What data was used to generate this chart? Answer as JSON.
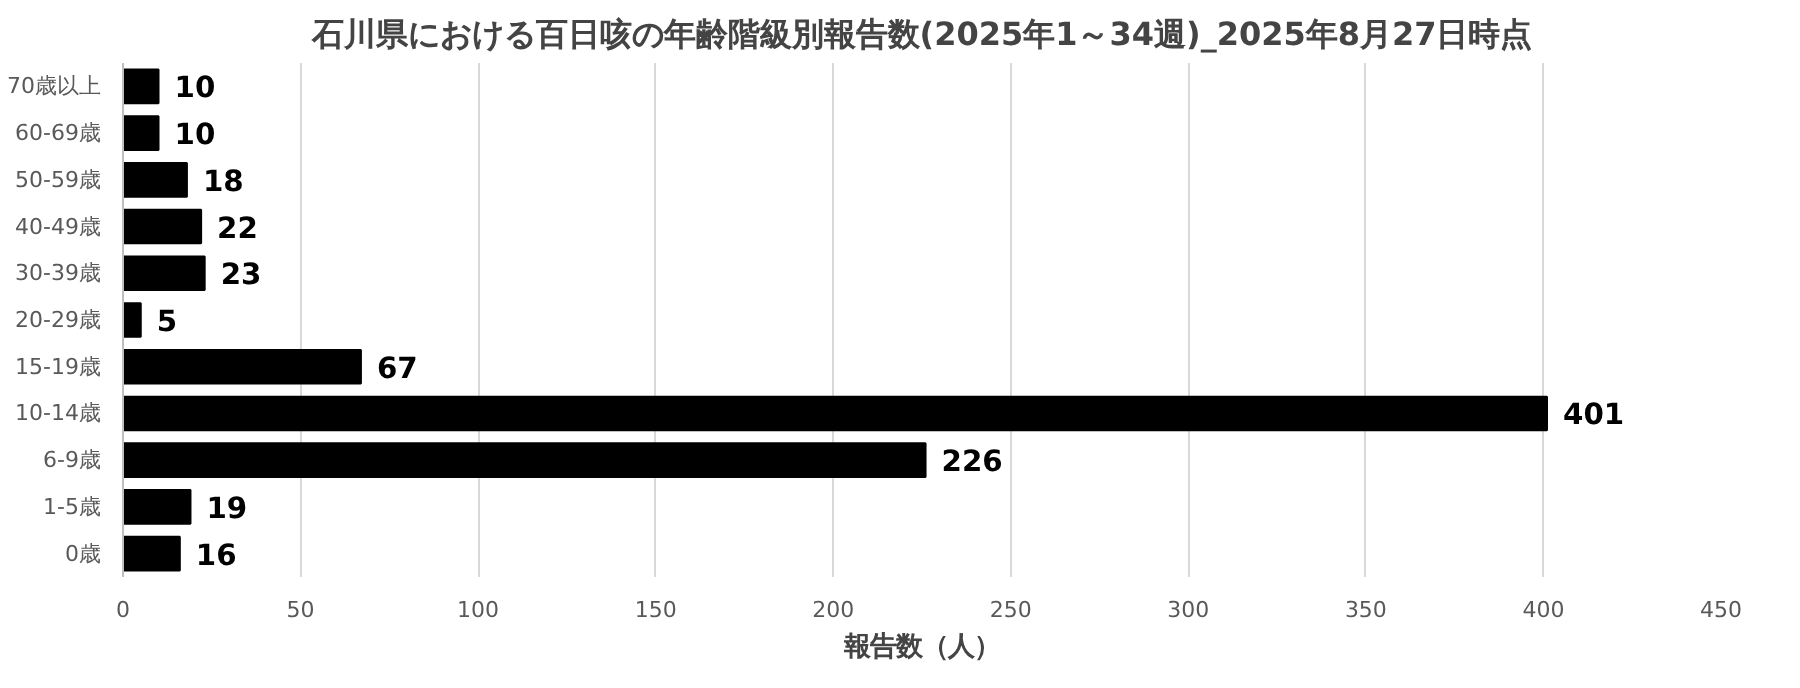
{
  "chart_data": {
    "type": "bar",
    "orientation": "horizontal",
    "title": "石川県における百日咳の年齢階級別報告数(2025年1～34週)_2025年8月27日時点",
    "xlabel": "報告数（人）",
    "categories": [
      "70歳以上",
      "60-69歳",
      "50-59歳",
      "40-49歳",
      "30-39歳",
      "20-29歳",
      "15-19歳",
      "10-14歳",
      "6-9歳",
      "1-5歳",
      "0歳"
    ],
    "values": [
      10,
      10,
      18,
      22,
      23,
      5,
      67,
      401,
      226,
      19,
      16
    ],
    "color": "#000000",
    "xlim": [
      0,
      450
    ],
    "xticks": [
      0,
      50,
      100,
      150,
      200,
      250,
      300,
      350,
      400,
      450
    ],
    "grid": "x",
    "data_labels": true
  }
}
